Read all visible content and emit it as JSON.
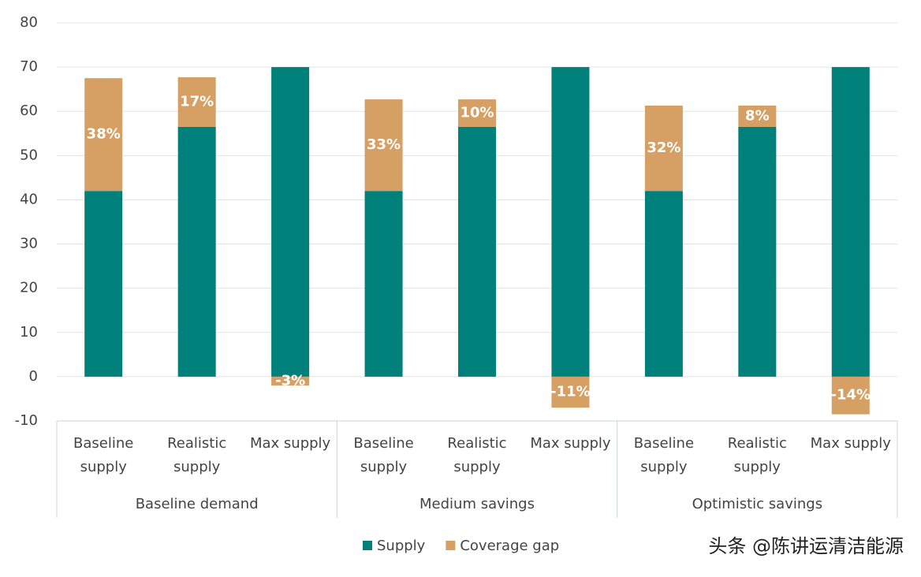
{
  "chart_data": {
    "type": "stacked-bar",
    "groups": [
      {
        "name": "Baseline demand",
        "categories": [
          "Baseline supply",
          "Realistic supply",
          "Max supply"
        ]
      },
      {
        "name": "Medium savings",
        "categories": [
          "Baseline supply",
          "Realistic supply",
          "Max supply"
        ]
      },
      {
        "name": "Optimistic savings",
        "categories": [
          "Baseline supply",
          "Realistic supply",
          "Max supply"
        ]
      }
    ],
    "series": [
      {
        "name": "Supply",
        "color": "#00807b",
        "values": [
          42,
          56.5,
          70,
          42,
          56.5,
          70,
          42,
          56.5,
          70
        ]
      },
      {
        "name": "Coverage gap",
        "color": "#d6a064",
        "values": [
          25.5,
          11.2,
          -2,
          20.7,
          6.2,
          -7,
          19.3,
          4.8,
          -8.5
        ],
        "share_labels": [
          "38%",
          "17%",
          "-3%",
          "33%",
          "10%",
          "-11%",
          "32%",
          "8%",
          "-14%"
        ]
      }
    ],
    "ylim": [
      -10,
      80
    ],
    "yticks": [
      -10,
      0,
      10,
      20,
      30,
      40,
      50,
      60,
      70,
      80
    ],
    "grid": true,
    "watermark": "头条 @陈讲运清洁能源"
  }
}
